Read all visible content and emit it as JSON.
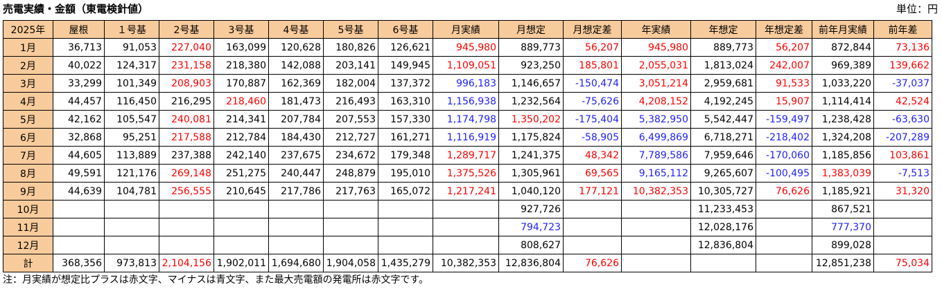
{
  "title": "売電実績・金額（東電検針値）",
  "unit": "単位：円",
  "columns": [
    "2025年",
    "屋根",
    "１号基",
    "2号基",
    "3号基",
    "4号基",
    "5号基",
    "6号基",
    "月実績",
    "月想定",
    "月想定差",
    "年実績",
    "年想定",
    "年想定差",
    "前年月実績",
    "前年差"
  ],
  "rows": [
    {
      "label": "1月",
      "cells": [
        {
          "v": "36,713",
          "c": ""
        },
        {
          "v": "91,053",
          "c": ""
        },
        {
          "v": "227,040",
          "c": "red"
        },
        {
          "v": "163,099",
          "c": ""
        },
        {
          "v": "120,628",
          "c": ""
        },
        {
          "v": "180,826",
          "c": ""
        },
        {
          "v": "126,621",
          "c": ""
        },
        {
          "v": "945,980",
          "c": "red"
        },
        {
          "v": "889,773",
          "c": ""
        },
        {
          "v": "56,207",
          "c": "red"
        },
        {
          "v": "945,980",
          "c": "red"
        },
        {
          "v": "889,773",
          "c": ""
        },
        {
          "v": "56,207",
          "c": "red"
        },
        {
          "v": "872,844",
          "c": ""
        },
        {
          "v": "73,136",
          "c": "red"
        }
      ]
    },
    {
      "label": "2月",
      "cells": [
        {
          "v": "40,022",
          "c": ""
        },
        {
          "v": "124,317",
          "c": ""
        },
        {
          "v": "231,158",
          "c": "red"
        },
        {
          "v": "218,380",
          "c": ""
        },
        {
          "v": "142,088",
          "c": ""
        },
        {
          "v": "203,141",
          "c": ""
        },
        {
          "v": "149,945",
          "c": ""
        },
        {
          "v": "1,109,051",
          "c": "red"
        },
        {
          "v": "923,250",
          "c": ""
        },
        {
          "v": "185,801",
          "c": "red"
        },
        {
          "v": "2,055,031",
          "c": "red"
        },
        {
          "v": "1,813,024",
          "c": ""
        },
        {
          "v": "242,007",
          "c": "red"
        },
        {
          "v": "969,389",
          "c": ""
        },
        {
          "v": "139,662",
          "c": "red"
        }
      ]
    },
    {
      "label": "3月",
      "cells": [
        {
          "v": "33,299",
          "c": ""
        },
        {
          "v": "101,349",
          "c": ""
        },
        {
          "v": "208,903",
          "c": "red"
        },
        {
          "v": "170,887",
          "c": ""
        },
        {
          "v": "162,369",
          "c": ""
        },
        {
          "v": "182,004",
          "c": ""
        },
        {
          "v": "137,372",
          "c": ""
        },
        {
          "v": "996,183",
          "c": "blue"
        },
        {
          "v": "1,146,657",
          "c": ""
        },
        {
          "v": "-150,474",
          "c": "blue"
        },
        {
          "v": "3,051,214",
          "c": "red"
        },
        {
          "v": "2,959,681",
          "c": ""
        },
        {
          "v": "91,533",
          "c": "red"
        },
        {
          "v": "1,033,220",
          "c": ""
        },
        {
          "v": "-37,037",
          "c": "blue"
        }
      ]
    },
    {
      "label": "4月",
      "cells": [
        {
          "v": "44,457",
          "c": ""
        },
        {
          "v": "116,450",
          "c": ""
        },
        {
          "v": "216,295",
          "c": ""
        },
        {
          "v": "218,460",
          "c": "red"
        },
        {
          "v": "181,473",
          "c": ""
        },
        {
          "v": "216,493",
          "c": ""
        },
        {
          "v": "163,310",
          "c": ""
        },
        {
          "v": "1,156,938",
          "c": "blue"
        },
        {
          "v": "1,232,564",
          "c": ""
        },
        {
          "v": "-75,626",
          "c": "blue"
        },
        {
          "v": "4,208,152",
          "c": "red"
        },
        {
          "v": "4,192,245",
          "c": ""
        },
        {
          "v": "15,907",
          "c": "red"
        },
        {
          "v": "1,114,414",
          "c": ""
        },
        {
          "v": "42,524",
          "c": "red"
        }
      ]
    },
    {
      "label": "5月",
      "cells": [
        {
          "v": "42,162",
          "c": ""
        },
        {
          "v": "105,547",
          "c": ""
        },
        {
          "v": "240,081",
          "c": "red"
        },
        {
          "v": "214,341",
          "c": ""
        },
        {
          "v": "207,784",
          "c": ""
        },
        {
          "v": "207,553",
          "c": ""
        },
        {
          "v": "157,330",
          "c": ""
        },
        {
          "v": "1,174,798",
          "c": "blue"
        },
        {
          "v": "1,350,202",
          "c": "red"
        },
        {
          "v": "-175,404",
          "c": "blue"
        },
        {
          "v": "5,382,950",
          "c": "blue"
        },
        {
          "v": "5,542,447",
          "c": ""
        },
        {
          "v": "-159,497",
          "c": "blue"
        },
        {
          "v": "1,238,428",
          "c": ""
        },
        {
          "v": "-63,630",
          "c": "blue"
        }
      ]
    },
    {
      "label": "6月",
      "cells": [
        {
          "v": "32,868",
          "c": ""
        },
        {
          "v": "95,251",
          "c": ""
        },
        {
          "v": "217,588",
          "c": "red"
        },
        {
          "v": "212,784",
          "c": ""
        },
        {
          "v": "184,430",
          "c": ""
        },
        {
          "v": "212,727",
          "c": ""
        },
        {
          "v": "161,271",
          "c": ""
        },
        {
          "v": "1,116,919",
          "c": "blue"
        },
        {
          "v": "1,175,824",
          "c": ""
        },
        {
          "v": "-58,905",
          "c": "blue"
        },
        {
          "v": "6,499,869",
          "c": "blue"
        },
        {
          "v": "6,718,271",
          "c": ""
        },
        {
          "v": "-218,402",
          "c": "blue"
        },
        {
          "v": "1,324,208",
          "c": ""
        },
        {
          "v": "-207,289",
          "c": "blue"
        }
      ]
    },
    {
      "label": "7月",
      "cells": [
        {
          "v": "44,605",
          "c": ""
        },
        {
          "v": "113,889",
          "c": ""
        },
        {
          "v": "237,388",
          "c": ""
        },
        {
          "v": "242,140",
          "c": ""
        },
        {
          "v": "237,675",
          "c": ""
        },
        {
          "v": "234,672",
          "c": ""
        },
        {
          "v": "179,348",
          "c": ""
        },
        {
          "v": "1,289,717",
          "c": "red"
        },
        {
          "v": "1,241,375",
          "c": ""
        },
        {
          "v": "48,342",
          "c": "red"
        },
        {
          "v": "7,789,586",
          "c": "blue"
        },
        {
          "v": "7,959,646",
          "c": ""
        },
        {
          "v": "-170,060",
          "c": "blue"
        },
        {
          "v": "1,185,856",
          "c": ""
        },
        {
          "v": "103,861",
          "c": "red"
        }
      ]
    },
    {
      "label": "8月",
      "cells": [
        {
          "v": "49,591",
          "c": ""
        },
        {
          "v": "121,176",
          "c": ""
        },
        {
          "v": "269,148",
          "c": "red"
        },
        {
          "v": "251,275",
          "c": ""
        },
        {
          "v": "240,447",
          "c": ""
        },
        {
          "v": "248,879",
          "c": ""
        },
        {
          "v": "195,010",
          "c": ""
        },
        {
          "v": "1,375,526",
          "c": "red"
        },
        {
          "v": "1,305,961",
          "c": ""
        },
        {
          "v": "69,565",
          "c": "red"
        },
        {
          "v": "9,165,112",
          "c": "blue"
        },
        {
          "v": "9,265,607",
          "c": ""
        },
        {
          "v": "-100,495",
          "c": "blue"
        },
        {
          "v": "1,383,039",
          "c": "red"
        },
        {
          "v": "-7,513",
          "c": "blue"
        }
      ]
    },
    {
      "label": "9月",
      "cells": [
        {
          "v": "44,639",
          "c": ""
        },
        {
          "v": "104,781",
          "c": ""
        },
        {
          "v": "256,555",
          "c": "red"
        },
        {
          "v": "210,645",
          "c": ""
        },
        {
          "v": "217,786",
          "c": ""
        },
        {
          "v": "217,763",
          "c": ""
        },
        {
          "v": "165,072",
          "c": ""
        },
        {
          "v": "1,217,241",
          "c": "red"
        },
        {
          "v": "1,040,120",
          "c": ""
        },
        {
          "v": "177,121",
          "c": "red"
        },
        {
          "v": "10,382,353",
          "c": "red"
        },
        {
          "v": "10,305,727",
          "c": ""
        },
        {
          "v": "76,626",
          "c": "red"
        },
        {
          "v": "1,185,921",
          "c": ""
        },
        {
          "v": "31,320",
          "c": "red"
        }
      ]
    },
    {
      "label": "10月",
      "cells": [
        {
          "v": "",
          "c": ""
        },
        {
          "v": "",
          "c": ""
        },
        {
          "v": "",
          "c": ""
        },
        {
          "v": "",
          "c": ""
        },
        {
          "v": "",
          "c": ""
        },
        {
          "v": "",
          "c": ""
        },
        {
          "v": "",
          "c": ""
        },
        {
          "v": "",
          "c": ""
        },
        {
          "v": "927,726",
          "c": ""
        },
        {
          "v": "",
          "c": ""
        },
        {
          "v": "",
          "c": ""
        },
        {
          "v": "11,233,453",
          "c": ""
        },
        {
          "v": "",
          "c": ""
        },
        {
          "v": "867,521",
          "c": ""
        },
        {
          "v": "",
          "c": ""
        }
      ]
    },
    {
      "label": "11月",
      "cells": [
        {
          "v": "",
          "c": ""
        },
        {
          "v": "",
          "c": ""
        },
        {
          "v": "",
          "c": ""
        },
        {
          "v": "",
          "c": ""
        },
        {
          "v": "",
          "c": ""
        },
        {
          "v": "",
          "c": ""
        },
        {
          "v": "",
          "c": ""
        },
        {
          "v": "",
          "c": ""
        },
        {
          "v": "794,723",
          "c": "blue"
        },
        {
          "v": "",
          "c": ""
        },
        {
          "v": "",
          "c": ""
        },
        {
          "v": "12,028,176",
          "c": ""
        },
        {
          "v": "",
          "c": ""
        },
        {
          "v": "777,370",
          "c": "blue"
        },
        {
          "v": "",
          "c": ""
        }
      ]
    },
    {
      "label": "12月",
      "cells": [
        {
          "v": "",
          "c": ""
        },
        {
          "v": "",
          "c": ""
        },
        {
          "v": "",
          "c": ""
        },
        {
          "v": "",
          "c": ""
        },
        {
          "v": "",
          "c": ""
        },
        {
          "v": "",
          "c": ""
        },
        {
          "v": "",
          "c": ""
        },
        {
          "v": "",
          "c": ""
        },
        {
          "v": "808,627",
          "c": ""
        },
        {
          "v": "",
          "c": ""
        },
        {
          "v": "",
          "c": ""
        },
        {
          "v": "12,836,804",
          "c": ""
        },
        {
          "v": "",
          "c": ""
        },
        {
          "v": "899,028",
          "c": ""
        },
        {
          "v": "",
          "c": ""
        }
      ]
    },
    {
      "label": "計",
      "cells": [
        {
          "v": "368,356",
          "c": ""
        },
        {
          "v": "973,813",
          "c": ""
        },
        {
          "v": "2,104,156",
          "c": "red"
        },
        {
          "v": "1,902,011",
          "c": ""
        },
        {
          "v": "1,694,680",
          "c": ""
        },
        {
          "v": "1,904,058",
          "c": ""
        },
        {
          "v": "1,435,279",
          "c": ""
        },
        {
          "v": "10,382,353",
          "c": ""
        },
        {
          "v": "12,836,804",
          "c": ""
        },
        {
          "v": "76,626",
          "c": "red"
        },
        {
          "v": "",
          "c": ""
        },
        {
          "v": "",
          "c": ""
        },
        {
          "v": "",
          "c": ""
        },
        {
          "v": "12,851,238",
          "c": ""
        },
        {
          "v": "75,034",
          "c": "red"
        }
      ]
    }
  ],
  "note": "注：月実績が想定比プラスは赤文字、マイナスは青文字、また最大売電額の発電所は赤文字です。",
  "colors": {
    "header_bg": "#f8cb9c",
    "positive": "#ff0000",
    "negative": "#1f1fff"
  }
}
